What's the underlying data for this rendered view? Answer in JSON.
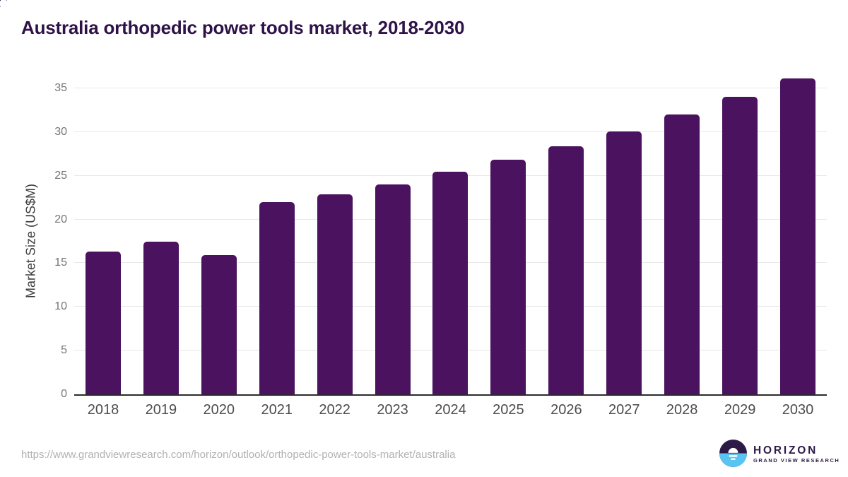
{
  "title": "Australia orthopedic power tools market, 2018-2030",
  "source_url": "https://www.grandviewresearch.com/horizon/outlook/orthopedic-power-tools-market/australia",
  "logo": {
    "wordmark": "HORIZON",
    "tagline": "GRAND VIEW RESEARCH"
  },
  "colors": {
    "bar": "#4a125f",
    "title_text": "#2f1248",
    "axis_title": "#3d3d3d",
    "y_tick": "#757575",
    "x_tick": "#4c4c4c",
    "gridline": "#e8e8e8",
    "baseline": "#2b2b2b",
    "url_text": "#b1b1b1",
    "logo_purple": "#2d1a47",
    "logo_blue": "#58c5f1",
    "logo_white": "#ffffff"
  },
  "chart_data": {
    "type": "bar",
    "title": "Australia orthopedic power tools market, 2018-2030",
    "xlabel": "",
    "ylabel": "Market Size (US$M)",
    "categories": [
      "2018",
      "2019",
      "2020",
      "2021",
      "2022",
      "2023",
      "2024",
      "2025",
      "2026",
      "2027",
      "2028",
      "2029",
      "2030"
    ],
    "values": [
      16.3,
      17.5,
      15.9,
      22.0,
      22.9,
      24.0,
      25.5,
      26.8,
      28.4,
      30.1,
      32.0,
      34.0,
      36.1
    ],
    "ylim": [
      0,
      35
    ],
    "yticks": [
      0,
      5,
      10,
      15,
      20,
      25,
      30,
      35
    ],
    "grid": true,
    "legend": "none",
    "bar_color": "#4a125f"
  }
}
